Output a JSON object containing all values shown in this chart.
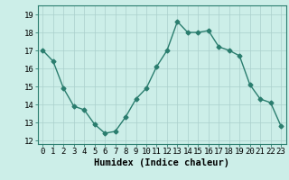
{
  "x": [
    0,
    1,
    2,
    3,
    4,
    5,
    6,
    7,
    8,
    9,
    10,
    11,
    12,
    13,
    14,
    15,
    16,
    17,
    18,
    19,
    20,
    21,
    22,
    23
  ],
  "y": [
    17.0,
    16.4,
    14.9,
    13.9,
    13.7,
    12.9,
    12.4,
    12.5,
    13.3,
    14.3,
    14.9,
    16.1,
    17.0,
    18.6,
    18.0,
    18.0,
    18.1,
    17.2,
    17.0,
    16.7,
    15.1,
    14.3,
    14.1,
    12.8
  ],
  "line_color": "#2a7d6e",
  "marker": "D",
  "marker_size": 2.5,
  "bg_color": "#cceee8",
  "grid_color_major": "#aacfcc",
  "xlabel": "Humidex (Indice chaleur)",
  "ylim": [
    11.8,
    19.5
  ],
  "xlim": [
    -0.5,
    23.5
  ],
  "yticks": [
    12,
    13,
    14,
    15,
    16,
    17,
    18,
    19
  ],
  "xlabel_fontsize": 7.5,
  "tick_fontsize": 6.5,
  "linewidth": 1.0
}
